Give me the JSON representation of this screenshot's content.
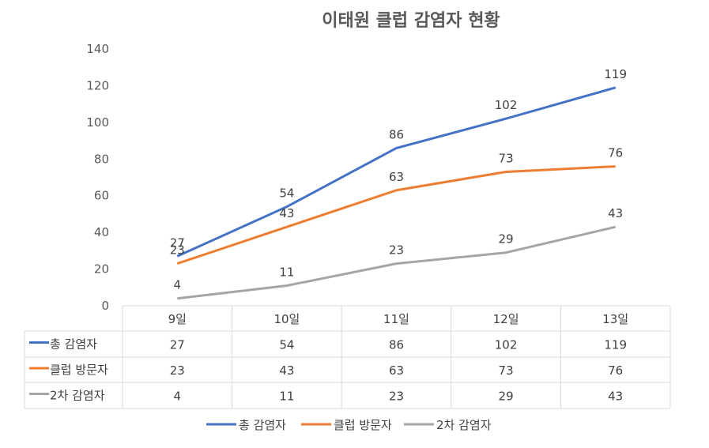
{
  "chart_data": {
    "type": "line",
    "title": "이태원 클럽 감염자 현황",
    "categories": [
      "9일",
      "10일",
      "11일",
      "12일",
      "13일"
    ],
    "ylim": [
      0,
      140
    ],
    "yticks": [
      "0",
      "20",
      "40",
      "60",
      "80",
      "100",
      "120",
      "140"
    ],
    "grid": false,
    "data_table": true,
    "legend_position": "bottom",
    "series": [
      {
        "name": "총 감염자",
        "color": "#4472C4",
        "values": [
          27,
          54,
          86,
          102,
          119
        ]
      },
      {
        "name": "클럽 방문자",
        "color": "#ED7D31",
        "values": [
          23,
          43,
          63,
          73,
          76
        ]
      },
      {
        "name": "2차 감염자",
        "color": "#A5A5A5",
        "values": [
          4,
          11,
          23,
          29,
          43
        ]
      }
    ]
  }
}
